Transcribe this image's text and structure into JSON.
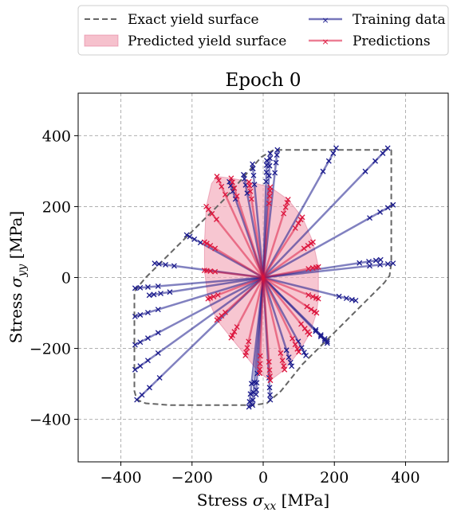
{
  "chart_data": {
    "type": "line",
    "title": "Epoch 0",
    "xlabel": "Stress σxx [MPa]",
    "xlabel_parts": {
      "prefix": "Stress ",
      "symbol": "σ",
      "sub": "xx",
      "unit": " [MPa]"
    },
    "ylabel": "Stress σyy [MPa]",
    "ylabel_parts": {
      "prefix": "Stress ",
      "symbol": "σ",
      "sub": "yy",
      "unit": " [MPa]"
    },
    "xlim": [
      -520,
      520
    ],
    "ylim": [
      -520,
      520
    ],
    "xticks": [
      -400,
      -200,
      0,
      200,
      400
    ],
    "yticks": [
      -400,
      -200,
      0,
      200,
      400
    ],
    "xtick_labels": [
      "−400",
      "−200",
      "0",
      "200",
      "400"
    ],
    "ytick_labels": [
      "−400",
      "−200",
      "0",
      "200",
      "400"
    ],
    "grid": true,
    "legend_position": "top",
    "legend": [
      {
        "label": "Exact yield surface",
        "kind": "dashed-line",
        "color": "#666666"
      },
      {
        "label": "Training data",
        "kind": "line-marker",
        "color": "#1a1a8c"
      },
      {
        "label": "Predicted yield surface",
        "kind": "patch",
        "color": "#f2a7b8"
      },
      {
        "label": "Predictions",
        "kind": "line-marker",
        "color": "#dc143c"
      }
    ],
    "exact_yield_surface": [
      [
        360,
        360
      ],
      [
        360,
        40
      ],
      [
        355,
        5
      ],
      [
        340,
        -15
      ],
      [
        110,
        -245
      ],
      [
        50,
        -320
      ],
      [
        10,
        -355
      ],
      [
        -30,
        -360
      ],
      [
        -260,
        -360
      ],
      [
        -330,
        -355
      ],
      [
        -355,
        -345
      ],
      [
        -362,
        -320
      ],
      [
        -362,
        -40
      ],
      [
        -355,
        -30
      ],
      [
        -330,
        0
      ],
      [
        -110,
        220
      ],
      [
        -45,
        295
      ],
      [
        -5,
        340
      ],
      [
        30,
        360
      ],
      [
        360,
        360
      ]
    ],
    "predicted_yield_surface": [
      [
        -130,
        285
      ],
      [
        -90,
        280
      ],
      [
        -40,
        270
      ],
      [
        20,
        255
      ],
      [
        70,
        220
      ],
      [
        110,
        170
      ],
      [
        140,
        100
      ],
      [
        155,
        30
      ],
      [
        155,
        -60
      ],
      [
        150,
        -100
      ],
      [
        130,
        -160
      ],
      [
        100,
        -210
      ],
      [
        60,
        -260
      ],
      [
        20,
        -290
      ],
      [
        -10,
        -270
      ],
      [
        -50,
        -220
      ],
      [
        -90,
        -170
      ],
      [
        -130,
        -120
      ],
      [
        -155,
        -60
      ],
      [
        -165,
        20
      ],
      [
        -165,
        100
      ],
      [
        -160,
        200
      ],
      [
        -145,
        265
      ],
      [
        -130,
        285
      ]
    ],
    "training_endpoints": [
      [
        365,
        40
      ],
      [
        365,
        205
      ],
      [
        350,
        365
      ],
      [
        205,
        365
      ],
      [
        40,
        360
      ],
      [
        20,
        350
      ],
      [
        10,
        330
      ],
      [
        -30,
        320
      ],
      [
        -55,
        290
      ],
      [
        -95,
        270
      ],
      [
        -215,
        120
      ],
      [
        -305,
        40
      ],
      [
        -360,
        -30
      ],
      [
        -360,
        -110
      ],
      [
        -360,
        -190
      ],
      [
        -360,
        -260
      ],
      [
        -355,
        -345
      ],
      [
        -320,
        -50
      ],
      [
        -40,
        -365
      ],
      [
        -20,
        -330
      ],
      [
        20,
        -345
      ],
      [
        80,
        -250
      ],
      [
        120,
        -220
      ],
      [
        180,
        -185
      ],
      [
        260,
        -65
      ],
      [
        330,
        50
      ],
      [
        180,
        -180
      ],
      [
        -30,
        -360
      ]
    ],
    "prediction_endpoints": [
      [
        -130,
        285
      ],
      [
        -90,
        280
      ],
      [
        -40,
        270
      ],
      [
        20,
        255
      ],
      [
        70,
        220
      ],
      [
        110,
        170
      ],
      [
        140,
        100
      ],
      [
        155,
        30
      ],
      [
        155,
        -60
      ],
      [
        150,
        -100
      ],
      [
        130,
        -160
      ],
      [
        100,
        -210
      ],
      [
        60,
        -260
      ],
      [
        20,
        -290
      ],
      [
        -10,
        -270
      ],
      [
        -50,
        -220
      ],
      [
        -90,
        -170
      ],
      [
        -130,
        -120
      ],
      [
        -155,
        -60
      ],
      [
        -165,
        20
      ],
      [
        -165,
        100
      ],
      [
        -160,
        200
      ]
    ]
  }
}
